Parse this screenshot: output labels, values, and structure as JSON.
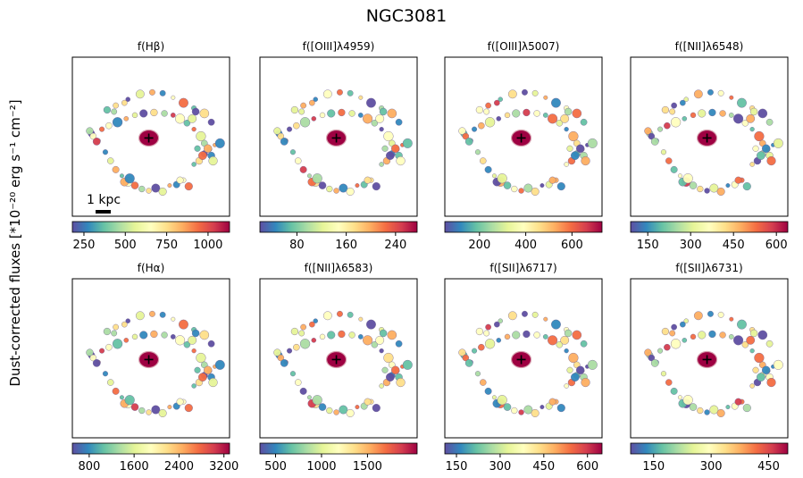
{
  "title": "NGC3081",
  "ylabel": "Dust-corrected fluxes [*10⁻²⁰ erg s⁻¹ cm⁻²]",
  "scalebar_label": "1 kpc",
  "colormap": [
    "#5e4fa2",
    "#3288bd",
    "#66c2a5",
    "#abdda4",
    "#e6f598",
    "#ffffbf",
    "#fee08b",
    "#fdae61",
    "#f46d43",
    "#d53e4f",
    "#9e0142"
  ],
  "chart_data": [
    {
      "type": "heatmap",
      "title": "f(Hβ)",
      "colorbar": {
        "min": 180,
        "max": 1130,
        "ticks": [
          250,
          500,
          750,
          1000
        ]
      }
    },
    {
      "type": "heatmap",
      "title": "f([OIII]λ4959)",
      "colorbar": {
        "min": 20,
        "max": 275,
        "ticks": [
          80,
          160,
          240
        ]
      }
    },
    {
      "type": "heatmap",
      "title": "f([OIII]λ5007)",
      "colorbar": {
        "min": 50,
        "max": 730,
        "ticks": [
          200,
          400,
          600
        ]
      }
    },
    {
      "type": "heatmap",
      "title": "f([NII]λ6548)",
      "colorbar": {
        "min": 90,
        "max": 640,
        "ticks": [
          150,
          300,
          450,
          600
        ]
      }
    },
    {
      "type": "heatmap",
      "title": "f(Hα)",
      "colorbar": {
        "min": 500,
        "max": 3300,
        "ticks": [
          800,
          1600,
          2400,
          3200
        ]
      }
    },
    {
      "type": "heatmap",
      "title": "f([NII]λ6583)",
      "colorbar": {
        "min": 330,
        "max": 2040,
        "ticks": [
          500,
          1000,
          1500
        ]
      }
    },
    {
      "type": "heatmap",
      "title": "f([SII]λ6717)",
      "colorbar": {
        "min": 110,
        "max": 650,
        "ticks": [
          150,
          300,
          450,
          600
        ]
      }
    },
    {
      "type": "heatmap",
      "title": "f([SII]λ6731)",
      "colorbar": {
        "min": 90,
        "max": 500,
        "ticks": [
          150,
          300,
          450
        ]
      }
    }
  ]
}
